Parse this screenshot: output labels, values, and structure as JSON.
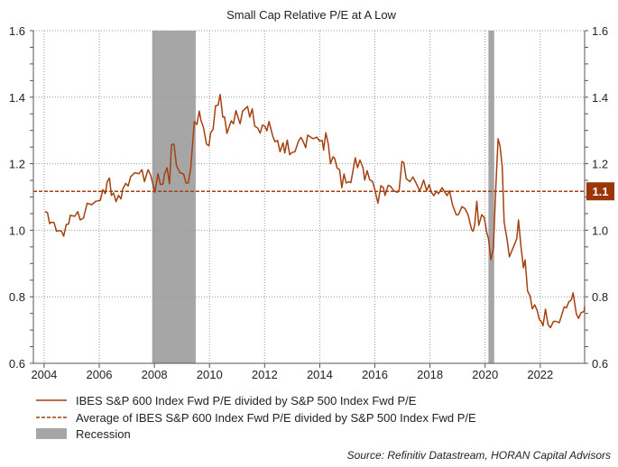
{
  "chart_data": {
    "type": "line",
    "title": "Small Cap Relative P/E at A Low",
    "xlabel": "",
    "ylabel": "",
    "xlim": [
      2003.61,
      2023.61
    ],
    "ylim": [
      0.6,
      1.6
    ],
    "x_ticks": [
      "2004",
      "2006",
      "2008",
      "2010",
      "2012",
      "2014",
      "2016",
      "2018",
      "2020",
      "2022"
    ],
    "y_ticks": [
      "0.6",
      "0.8",
      "1.0",
      "1.2",
      "1.4",
      "1.6"
    ],
    "grid": true,
    "legend_position": "bottom-left",
    "colors": {
      "series": "#a3410f",
      "recession": "#a6a6a6",
      "badge": "#9c3508"
    },
    "series": [
      {
        "name": "IBES S&P 600 Index Fwd P/E divided by S&P 500 Index Fwd P/E",
        "style": "solid",
        "x": [
          2004.03,
          2004.12,
          2004.2,
          2004.27,
          2004.36,
          2004.45,
          2004.54,
          2004.63,
          2004.71,
          2004.8,
          2004.89,
          2004.95,
          2005.11,
          2005.22,
          2005.31,
          2005.43,
          2005.56,
          2005.73,
          2005.87,
          2006.04,
          2006.13,
          2006.22,
          2006.29,
          2006.37,
          2006.44,
          2006.52,
          2006.61,
          2006.7,
          2006.79,
          2006.85,
          2006.96,
          2007.05,
          2007.14,
          2007.29,
          2007.44,
          2007.55,
          2007.64,
          2007.77,
          2007.86,
          2007.95,
          2008.02,
          2008.13,
          2008.22,
          2008.31,
          2008.37,
          2008.46,
          2008.55,
          2008.62,
          2008.71,
          2008.8,
          2008.93,
          2009.06,
          2009.15,
          2009.23,
          2009.32,
          2009.45,
          2009.54,
          2009.63,
          2009.69,
          2009.78,
          2009.89,
          2009.98,
          2010.04,
          2010.13,
          2010.22,
          2010.31,
          2010.39,
          2010.48,
          2010.55,
          2010.63,
          2010.79,
          2010.87,
          2010.96,
          2011.11,
          2011.2,
          2011.38,
          2011.46,
          2011.55,
          2011.64,
          2011.75,
          2011.84,
          2011.92,
          2012.01,
          2012.08,
          2012.16,
          2012.3,
          2012.38,
          2012.47,
          2012.56,
          2012.67,
          2012.73,
          2012.82,
          2012.91,
          2012.99,
          2013.1,
          2013.23,
          2013.32,
          2013.41,
          2013.49,
          2013.56,
          2013.76,
          2013.89,
          2014.0,
          2014.09,
          2014.14,
          2014.22,
          2014.31,
          2014.39,
          2014.48,
          2014.54,
          2014.63,
          2014.72,
          2014.8,
          2014.88,
          2014.96,
          2015.05,
          2015.13,
          2015.29,
          2015.37,
          2015.46,
          2015.57,
          2015.63,
          2015.72,
          2015.81,
          2015.92,
          2016.0,
          2016.11,
          2016.22,
          2016.31,
          2016.37,
          2016.48,
          2016.57,
          2016.68,
          2016.81,
          2016.88,
          2016.98,
          2017.05,
          2017.14,
          2017.27,
          2017.38,
          2017.49,
          2017.62,
          2017.68,
          2017.77,
          2017.88,
          2017.97,
          2018.05,
          2018.14,
          2018.23,
          2018.31,
          2018.44,
          2018.55,
          2018.62,
          2018.71,
          2018.81,
          2018.95,
          2019.03,
          2019.16,
          2019.27,
          2019.38,
          2019.51,
          2019.56,
          2019.62,
          2019.7,
          2019.77,
          2019.88,
          2019.97,
          2020.06,
          2020.12,
          2020.21,
          2020.3,
          2020.38,
          2020.47,
          2020.54,
          2020.62,
          2020.69,
          2020.8,
          2020.88,
          2020.97,
          2021.06,
          2021.15,
          2021.21,
          2021.3,
          2021.39,
          2021.45,
          2021.54,
          2021.63,
          2021.71,
          2021.8,
          2021.89,
          2021.97,
          2022.04,
          2022.1,
          2022.19,
          2022.28,
          2022.37,
          2022.48,
          2022.58,
          2022.69,
          2022.76,
          2022.87,
          2022.95,
          2023.04,
          2023.13,
          2023.19,
          2023.31,
          2023.39,
          2023.48,
          2023.59,
          2023.61
        ],
        "y": [
          1.056,
          1.053,
          1.02,
          1.024,
          1.023,
          0.997,
          0.999,
          0.997,
          0.982,
          1.017,
          1.019,
          1.045,
          1.042,
          1.056,
          1.031,
          1.037,
          1.081,
          1.077,
          1.087,
          1.09,
          1.122,
          1.11,
          1.146,
          1.157,
          1.105,
          1.112,
          1.086,
          1.105,
          1.094,
          1.123,
          1.141,
          1.133,
          1.161,
          1.173,
          1.17,
          1.182,
          1.146,
          1.182,
          1.167,
          1.137,
          1.114,
          1.17,
          1.137,
          1.139,
          1.169,
          1.188,
          1.14,
          1.257,
          1.259,
          1.194,
          1.173,
          1.169,
          1.142,
          1.142,
          1.187,
          1.327,
          1.318,
          1.358,
          1.331,
          1.309,
          1.259,
          1.254,
          1.292,
          1.304,
          1.374,
          1.376,
          1.408,
          1.34,
          1.34,
          1.291,
          1.329,
          1.32,
          1.36,
          1.32,
          1.358,
          1.372,
          1.34,
          1.365,
          1.313,
          1.307,
          1.292,
          1.316,
          1.313,
          1.299,
          1.327,
          1.281,
          1.266,
          1.27,
          1.236,
          1.263,
          1.232,
          1.271,
          1.227,
          1.234,
          1.236,
          1.268,
          1.279,
          1.265,
          1.248,
          1.286,
          1.275,
          1.28,
          1.268,
          1.27,
          1.241,
          1.293,
          1.259,
          1.2,
          1.221,
          1.216,
          1.187,
          1.182,
          1.128,
          1.169,
          1.142,
          1.146,
          1.143,
          1.218,
          1.188,
          1.211,
          1.187,
          1.151,
          1.179,
          1.152,
          1.146,
          1.122,
          1.081,
          1.134,
          1.128,
          1.105,
          1.135,
          1.132,
          1.119,
          1.114,
          1.12,
          1.207,
          1.203,
          1.155,
          1.146,
          1.16,
          1.143,
          1.119,
          1.128,
          1.151,
          1.119,
          1.137,
          1.114,
          1.104,
          1.117,
          1.11,
          1.128,
          1.113,
          1.104,
          1.119,
          1.078,
          1.047,
          1.047,
          1.071,
          1.065,
          1.047,
          1.002,
          0.997,
          1.015,
          1.087,
          1.015,
          1.047,
          1.038,
          0.993,
          0.975,
          0.911,
          0.947,
          1.114,
          1.275,
          1.254,
          1.191,
          1.024,
          0.97,
          0.92,
          0.938,
          0.956,
          0.975,
          1.031,
          0.952,
          0.887,
          0.911,
          0.817,
          0.803,
          0.764,
          0.776,
          0.758,
          0.731,
          0.726,
          0.713,
          0.763,
          0.717,
          0.707,
          0.726,
          0.726,
          0.722,
          0.74,
          0.77,
          0.767,
          0.785,
          0.791,
          0.812,
          0.749,
          0.735,
          0.752,
          0.756,
          0.771
        ]
      },
      {
        "name": "Average of IBES S&P 600 Index Fwd P/E divided by S&P 500 Index Fwd P/E",
        "style": "dashed",
        "value": 1.117,
        "label": "1.1"
      }
    ],
    "recessions": {
      "name": "Recession",
      "ranges": [
        [
          2007.92,
          2009.5
        ],
        [
          2020.12,
          2020.33
        ]
      ]
    },
    "source": "Source: Refinitiv Datastream, HORAN Capital Advisors"
  }
}
